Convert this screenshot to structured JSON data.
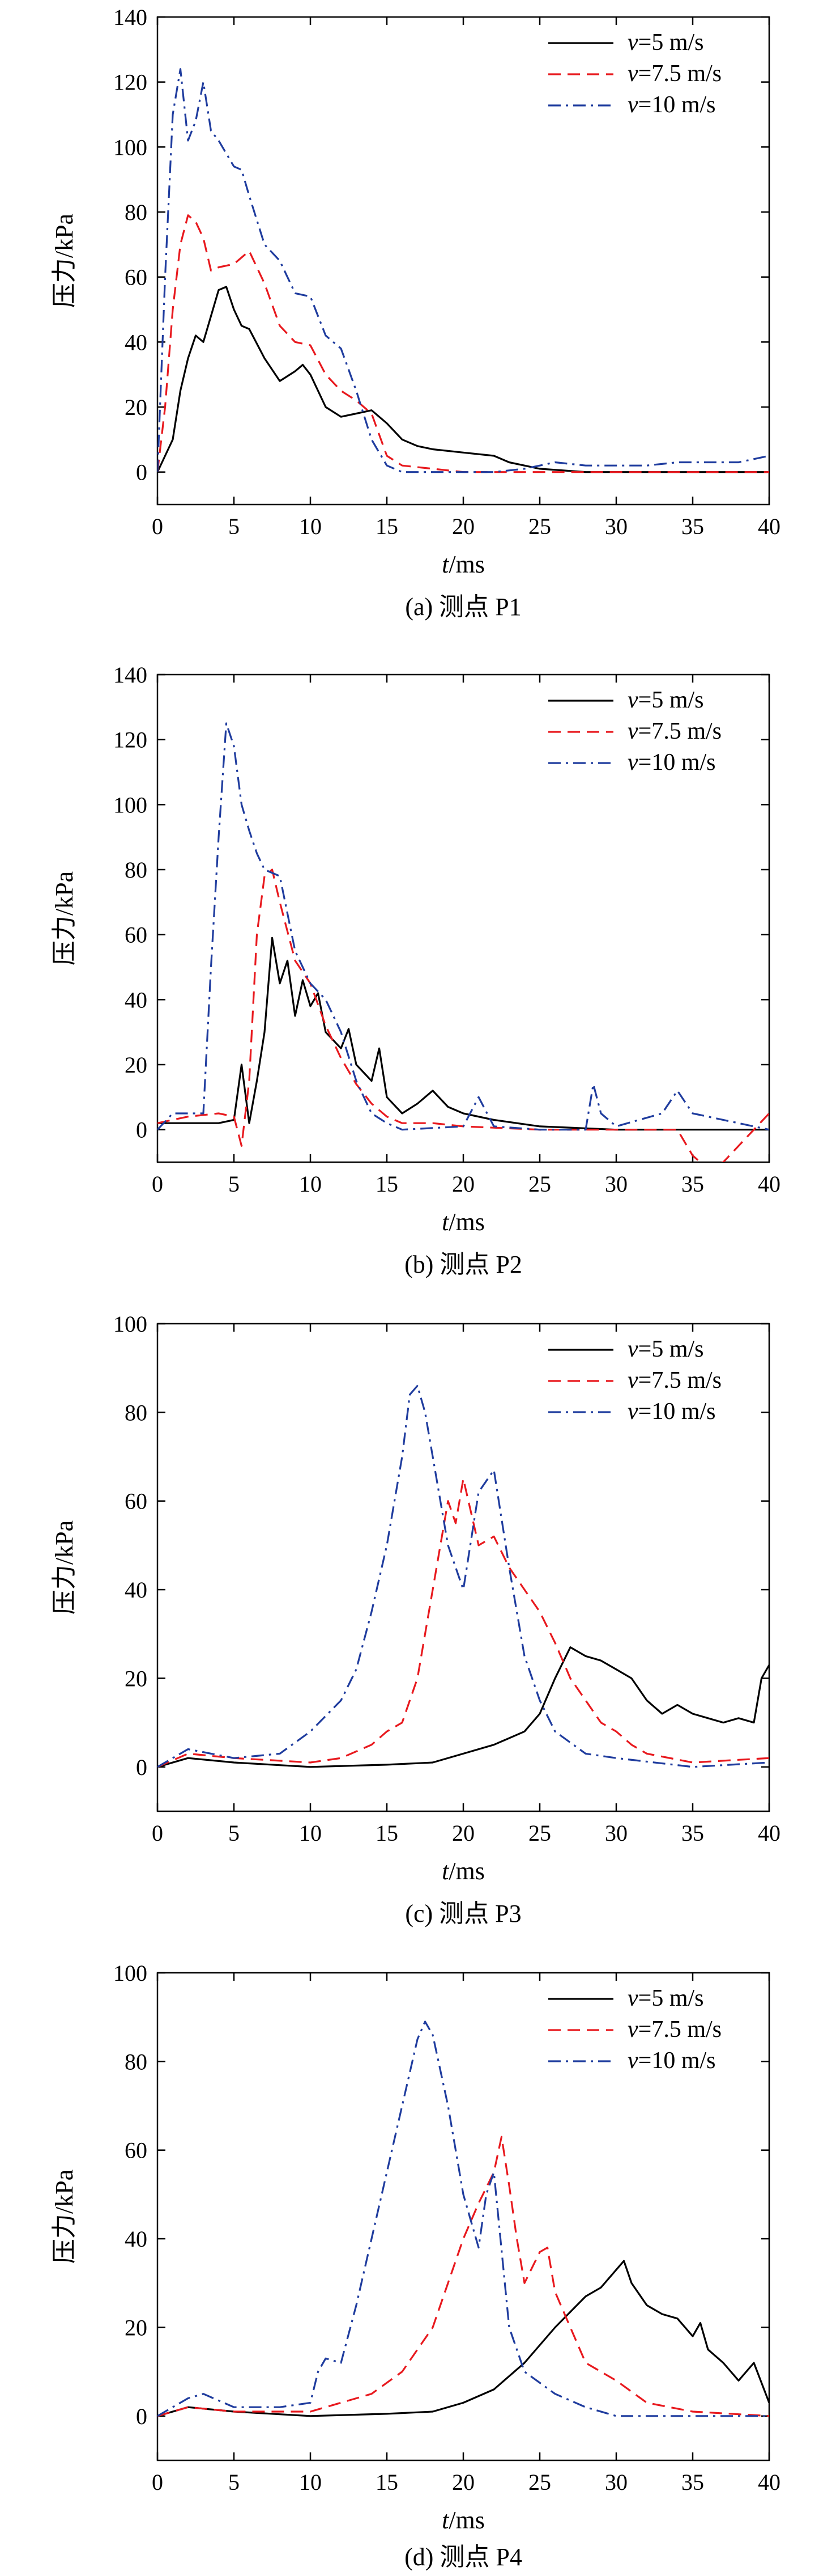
{
  "chart_data": [
    {
      "type": "line",
      "caption": "(a) 测点 P1",
      "xlabel_italic": "t",
      "xlabel_unit": "/ms",
      "ylabel": "压力/kPa",
      "xlim": [
        0,
        40
      ],
      "ylim": [
        -10,
        140
      ],
      "xticks": [
        0,
        5,
        10,
        15,
        20,
        25,
        30,
        35,
        40
      ],
      "yticks": [
        0,
        20,
        40,
        60,
        80,
        100,
        120,
        140
      ],
      "grid": false,
      "legend_position": "top-right",
      "series": [
        {
          "name": "v=5 m/s",
          "name_italic": "v",
          "name_rest": "=5 m/s",
          "color": "#000000",
          "dash": "solid",
          "x": [
            0,
            0.5,
            1,
            1.5,
            2,
            2.5,
            3,
            3.5,
            4,
            4.5,
            5,
            5.5,
            6,
            7,
            8,
            9,
            9.5,
            10,
            11,
            12,
            13,
            14,
            15,
            16,
            17,
            18,
            20,
            22,
            23,
            25,
            28,
            30,
            35,
            40
          ],
          "y": [
            0,
            5,
            10,
            25,
            35,
            42,
            40,
            48,
            56,
            57,
            50,
            45,
            44,
            35,
            28,
            31,
            33,
            30,
            20,
            17,
            18,
            19,
            15,
            10,
            8,
            7,
            6,
            5,
            3,
            1,
            0,
            0,
            0,
            0
          ]
        },
        {
          "name": "v=7.5 m/s",
          "name_italic": "v",
          "name_rest": "=7.5 m/s",
          "color": "#e8191e",
          "dash": "dashed",
          "x": [
            0,
            0.5,
            1,
            1.5,
            2,
            2.5,
            3,
            3.5,
            4,
            5,
            6,
            7,
            8,
            9,
            10,
            11,
            12,
            13,
            14,
            15,
            16,
            18,
            20,
            25,
            30,
            35,
            40
          ],
          "y": [
            0,
            20,
            50,
            70,
            79,
            77,
            72,
            62,
            63,
            64,
            68,
            58,
            45,
            40,
            39,
            30,
            25,
            22,
            18,
            5,
            2,
            1,
            0,
            0,
            0,
            0,
            0
          ]
        },
        {
          "name": "v=10 m/s",
          "name_italic": "v",
          "name_rest": "=10 m/s",
          "color": "#1f3c9e",
          "dash": "dashdot",
          "x": [
            0,
            0.5,
            1,
            1.5,
            2,
            2.5,
            3,
            3.5,
            4,
            5,
            5.5,
            6,
            7,
            8,
            9,
            10,
            11,
            12,
            13,
            14,
            15,
            16,
            18,
            20,
            22,
            24,
            26,
            28,
            30,
            32,
            34,
            36,
            38,
            40
          ],
          "y": [
            0,
            60,
            110,
            124,
            102,
            108,
            120,
            105,
            102,
            94,
            93,
            85,
            70,
            65,
            55,
            54,
            42,
            38,
            25,
            10,
            2,
            0,
            0,
            0,
            0,
            1,
            3,
            2,
            2,
            2,
            3,
            3,
            3,
            5
          ]
        }
      ]
    },
    {
      "type": "line",
      "caption": "(b) 测点 P2",
      "xlabel_italic": "t",
      "xlabel_unit": "/ms",
      "ylabel": "压力/kPa",
      "xlim": [
        0,
        40
      ],
      "ylim": [
        -10,
        140
      ],
      "xticks": [
        0,
        5,
        10,
        15,
        20,
        25,
        30,
        35,
        40
      ],
      "yticks": [
        0,
        20,
        40,
        60,
        80,
        100,
        120,
        140
      ],
      "grid": false,
      "legend_position": "top-right",
      "series": [
        {
          "name": "v=5 m/s",
          "name_italic": "v",
          "name_rest": "=5 m/s",
          "color": "#000000",
          "dash": "solid",
          "x": [
            0,
            2,
            4,
            5,
            5.5,
            6,
            6.5,
            7,
            7.5,
            8,
            8.5,
            9,
            9.5,
            10,
            10.5,
            11,
            12,
            12.5,
            13,
            14,
            14.5,
            15,
            16,
            17,
            18,
            19,
            20,
            22,
            25,
            30,
            35,
            40
          ],
          "y": [
            2,
            2,
            2,
            3,
            20,
            2,
            15,
            30,
            59,
            45,
            52,
            35,
            46,
            38,
            42,
            30,
            25,
            31,
            20,
            15,
            25,
            10,
            5,
            8,
            12,
            7,
            5,
            3,
            1,
            0,
            0,
            0
          ]
        },
        {
          "name": "v=7.5 m/s",
          "name_italic": "v",
          "name_rest": "=7.5 m/s",
          "color": "#e8191e",
          "dash": "dashed",
          "x": [
            0,
            2,
            4,
            5,
            5.5,
            6,
            6.5,
            7,
            7.5,
            8,
            9,
            10,
            11,
            12,
            13,
            14,
            15,
            16,
            18,
            20,
            25,
            30,
            34,
            35,
            36,
            37,
            40
          ],
          "y": [
            2,
            4,
            5,
            4,
            -5,
            15,
            60,
            78,
            80,
            70,
            52,
            45,
            32,
            22,
            14,
            8,
            4,
            2,
            2,
            1,
            0,
            0,
            0,
            -8,
            -12,
            -10,
            5
          ]
        },
        {
          "name": "v=10 m/s",
          "name_italic": "v",
          "name_rest": "=10 m/s",
          "color": "#1f3c9e",
          "dash": "dashdot",
          "x": [
            0,
            1,
            2,
            3,
            3.5,
            4,
            4.5,
            5,
            5.5,
            6,
            6.5,
            7,
            8,
            9,
            10,
            11,
            12,
            13,
            14,
            15,
            16,
            20,
            21,
            22,
            25,
            28,
            28.5,
            29,
            30,
            33,
            34,
            35,
            40
          ],
          "y": [
            0,
            5,
            5,
            5,
            50,
            90,
            125,
            118,
            100,
            92,
            85,
            80,
            78,
            55,
            45,
            40,
            30,
            15,
            5,
            2,
            0,
            1,
            10,
            1,
            0,
            0,
            14,
            5,
            1,
            5,
            12,
            5,
            0
          ]
        }
      ]
    },
    {
      "type": "line",
      "caption": "(c) 测点 P3",
      "xlabel_italic": "t",
      "xlabel_unit": "/ms",
      "ylabel": "压力/kPa",
      "xlim": [
        0,
        40
      ],
      "ylim": [
        -10,
        100
      ],
      "xticks": [
        0,
        5,
        10,
        15,
        20,
        25,
        30,
        35,
        40
      ],
      "yticks": [
        0,
        20,
        40,
        60,
        80,
        100
      ],
      "grid": false,
      "legend_position": "top-right",
      "series": [
        {
          "name": "v=5 m/s",
          "name_italic": "v",
          "name_rest": "=5 m/s",
          "color": "#000000",
          "dash": "solid",
          "x": [
            0,
            2,
            5,
            10,
            15,
            18,
            20,
            22,
            24,
            25,
            26,
            27,
            28,
            29,
            30,
            31,
            32,
            33,
            34,
            35,
            36,
            37,
            38,
            39,
            39.5,
            40
          ],
          "y": [
            0,
            2,
            1,
            0,
            0.5,
            1,
            3,
            5,
            8,
            12,
            20,
            27,
            25,
            24,
            22,
            20,
            15,
            12,
            14,
            12,
            11,
            10,
            11,
            10,
            20,
            23
          ]
        },
        {
          "name": "v=7.5 m/s",
          "name_italic": "v",
          "name_rest": "=7.5 m/s",
          "color": "#e8191e",
          "dash": "dashed",
          "x": [
            0,
            2,
            5,
            10,
            12,
            14,
            15,
            16,
            17,
            18,
            19,
            19.5,
            20,
            21,
            22,
            23,
            24,
            25,
            26,
            27,
            28,
            29,
            30,
            31,
            32,
            35,
            40
          ],
          "y": [
            0,
            3,
            2,
            1,
            2,
            5,
            8,
            10,
            20,
            40,
            60,
            55,
            65,
            50,
            52,
            45,
            40,
            35,
            28,
            20,
            15,
            10,
            8,
            5,
            3,
            1,
            2
          ]
        },
        {
          "name": "v=10 m/s",
          "name_italic": "v",
          "name_rest": "=10 m/s",
          "color": "#1f3c9e",
          "dash": "dashdot",
          "x": [
            0,
            2,
            5,
            8,
            10,
            12,
            13,
            14,
            15,
            16,
            16.5,
            17,
            17.5,
            18,
            19,
            20,
            21,
            22,
            23,
            24,
            25,
            26,
            28,
            30,
            35,
            40
          ],
          "y": [
            0,
            4,
            2,
            3,
            8,
            15,
            22,
            35,
            50,
            70,
            84,
            86,
            80,
            70,
            50,
            40,
            62,
            67,
            45,
            25,
            15,
            8,
            3,
            2,
            0,
            1
          ]
        }
      ]
    },
    {
      "type": "line",
      "caption": "(d) 测点 P4",
      "xlabel_italic": "t",
      "xlabel_unit": "/ms",
      "ylabel": "压力/kPa",
      "xlim": [
        0,
        40
      ],
      "ylim": [
        -10,
        100
      ],
      "xticks": [
        0,
        5,
        10,
        15,
        20,
        25,
        30,
        35,
        40
      ],
      "yticks": [
        0,
        20,
        40,
        60,
        80,
        100
      ],
      "grid": false,
      "legend_position": "top-right",
      "series": [
        {
          "name": "v=5 m/s",
          "name_italic": "v",
          "name_rest": "=5 m/s",
          "color": "#000000",
          "dash": "solid",
          "x": [
            0,
            2,
            5,
            10,
            15,
            18,
            20,
            22,
            24,
            26,
            28,
            29,
            30,
            30.5,
            31,
            32,
            33,
            34,
            35,
            35.5,
            36,
            37,
            38,
            39,
            40
          ],
          "y": [
            0,
            2,
            1,
            0,
            0.5,
            1,
            3,
            6,
            12,
            20,
            27,
            29,
            33,
            35,
            30,
            25,
            23,
            22,
            18,
            21,
            15,
            12,
            8,
            12,
            3
          ]
        },
        {
          "name": "v=7.5 m/s",
          "name_italic": "v",
          "name_rest": "=7.5 m/s",
          "color": "#e8191e",
          "dash": "dashed",
          "x": [
            0,
            2,
            5,
            10,
            14,
            16,
            18,
            19,
            20,
            21,
            22,
            22.5,
            23,
            23.5,
            24,
            25,
            25.5,
            26,
            27,
            28,
            30,
            32,
            35,
            40
          ],
          "y": [
            0,
            2,
            1,
            1,
            5,
            10,
            20,
            30,
            40,
            48,
            55,
            63,
            52,
            40,
            30,
            37,
            38,
            28,
            20,
            12,
            8,
            3,
            1,
            0
          ]
        },
        {
          "name": "v=10 m/s",
          "name_italic": "v",
          "name_rest": "=10 m/s",
          "color": "#1f3c9e",
          "dash": "dashdot",
          "x": [
            0,
            2,
            3,
            5,
            8,
            10,
            10.5,
            11,
            12,
            13,
            14,
            15,
            16,
            17,
            17.5,
            18,
            18.5,
            19,
            20,
            21,
            21.5,
            22,
            23,
            24,
            26,
            28,
            30,
            35,
            40
          ],
          "y": [
            0,
            4,
            5,
            2,
            2,
            3,
            10,
            13,
            12,
            25,
            40,
            55,
            70,
            85,
            89,
            86,
            78,
            70,
            50,
            38,
            50,
            55,
            20,
            10,
            5,
            2,
            0,
            0,
            0
          ]
        }
      ]
    }
  ]
}
